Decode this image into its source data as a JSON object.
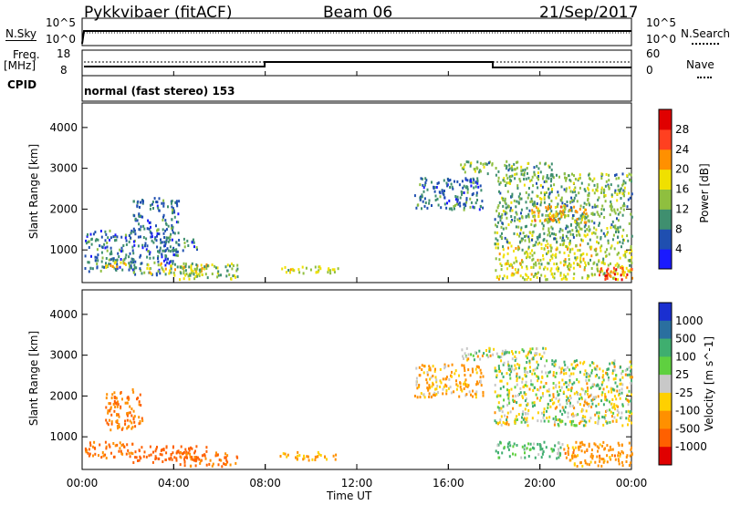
{
  "header": {
    "station": "Pykkvibaer (fitACF)",
    "beam": "Beam 06",
    "date": "21/Sep/2017"
  },
  "top_panels": {
    "nsky_label": "N.Sky",
    "nsearch_label": "N.Search",
    "noise_tick_hi": "10^5",
    "noise_tick_lo": "10^0",
    "freq_label_1": "Freq.",
    "freq_label_2": "[MHz]",
    "freq_tick_hi": "18",
    "freq_tick_lo": "8",
    "nave_label": "Nave",
    "nave_tick_hi": "60",
    "nave_tick_lo": "0",
    "cpid_label": "CPID",
    "cpid_text": "normal (fast stereo) 153"
  },
  "chart_data": [
    {
      "type": "heatmap",
      "panel": "power",
      "ylabel": "Slant Range [km]",
      "xlabel": "Time UT",
      "x_ticks": [
        "00:00",
        "04:00",
        "08:00",
        "12:00",
        "16:00",
        "20:00",
        "00:00"
      ],
      "xlim_hours": [
        0,
        24
      ],
      "ylim_km": [
        200,
        4600
      ],
      "y_ticks": [
        1000,
        2000,
        3000,
        4000
      ],
      "colorbar_label": "Power [dB]",
      "colorbar_ticks": [
        4,
        8,
        12,
        16,
        20,
        24,
        28
      ],
      "colorbar_colors": [
        "#1a1aff",
        "#1f4fb0",
        "#3f8f6f",
        "#8fbf3f",
        "#f0e000",
        "#ff9000",
        "#ff4020",
        "#e00000"
      ],
      "echo_regions": [
        {
          "t0": 0.1,
          "t1": 2.3,
          "r0": 500,
          "r1": 1500,
          "level": 8
        },
        {
          "t0": 1.0,
          "t1": 2.2,
          "r0": 600,
          "r1": 800,
          "level": 20
        },
        {
          "t0": 2.2,
          "t1": 4.2,
          "r0": 400,
          "r1": 2300,
          "level": 8
        },
        {
          "t0": 2.8,
          "t1": 5.5,
          "r0": 400,
          "r1": 700,
          "level": 18
        },
        {
          "t0": 4.2,
          "t1": 6.8,
          "r0": 300,
          "r1": 700,
          "level": 14
        },
        {
          "t0": 4.2,
          "t1": 5.0,
          "r0": 1000,
          "r1": 1300,
          "level": 8
        },
        {
          "t0": 8.6,
          "t1": 11.2,
          "r0": 450,
          "r1": 650,
          "level": 16
        },
        {
          "t0": 14.5,
          "t1": 17.5,
          "r0": 2000,
          "r1": 2800,
          "level": 8
        },
        {
          "t0": 16.5,
          "t1": 20.5,
          "r0": 2900,
          "r1": 3200,
          "level": 12
        },
        {
          "t0": 18.0,
          "t1": 24.0,
          "r0": 1200,
          "r1": 2900,
          "level": 12
        },
        {
          "t0": 19.5,
          "t1": 22.0,
          "r0": 1700,
          "r1": 2100,
          "level": 20
        },
        {
          "t0": 18.0,
          "t1": 24.0,
          "r0": 300,
          "r1": 1200,
          "level": 16
        },
        {
          "t0": 22.5,
          "t1": 24.0,
          "r0": 300,
          "r1": 600,
          "level": 26
        }
      ]
    },
    {
      "type": "heatmap",
      "panel": "velocity",
      "ylabel": "Slant Range [km]",
      "xlabel": "Time UT",
      "x_ticks": [
        "00:00",
        "04:00",
        "08:00",
        "12:00",
        "16:00",
        "20:00",
        "00:00"
      ],
      "xlim_hours": [
        0,
        24
      ],
      "ylim_km": [
        200,
        4600
      ],
      "y_ticks": [
        1000,
        2000,
        3000,
        4000
      ],
      "colorbar_label": "Velocity [m s^-1]",
      "colorbar_ticks": [
        "1000",
        "500",
        "100",
        "25",
        "-25",
        "-100",
        "-500",
        "-1000"
      ],
      "colorbar_colors": [
        "#1a2fd0",
        "#2a6f9f",
        "#3fae6f",
        "#5fd040",
        "#c8c8c8",
        "#ffd000",
        "#ff9000",
        "#ff6000",
        "#e00000"
      ],
      "echo_regions": [
        {
          "t0": 0.1,
          "t1": 2.3,
          "r0": 500,
          "r1": 900,
          "velocity": -300
        },
        {
          "t0": 1.0,
          "t1": 2.6,
          "r0": 1200,
          "r1": 2200,
          "velocity": -300
        },
        {
          "t0": 2.2,
          "t1": 5.5,
          "r0": 400,
          "r1": 800,
          "velocity": -500
        },
        {
          "t0": 4.2,
          "t1": 6.8,
          "r0": 300,
          "r1": 650,
          "velocity": -300
        },
        {
          "t0": 8.6,
          "t1": 11.2,
          "r0": 450,
          "r1": 650,
          "velocity": -150
        },
        {
          "t0": 14.5,
          "t1": 17.5,
          "r0": 2000,
          "r1": 2800,
          "velocity": -100
        },
        {
          "t0": 16.5,
          "t1": 20.5,
          "r0": 2900,
          "r1": 3200,
          "velocity": 0
        },
        {
          "t0": 18.0,
          "t1": 24.0,
          "r0": 1300,
          "r1": 2900,
          "velocity": 0
        },
        {
          "t0": 18.0,
          "t1": 21.0,
          "r0": 500,
          "r1": 900,
          "velocity": 100
        },
        {
          "t0": 21.0,
          "t1": 24.0,
          "r0": 300,
          "r1": 900,
          "velocity": -200
        }
      ]
    }
  ]
}
